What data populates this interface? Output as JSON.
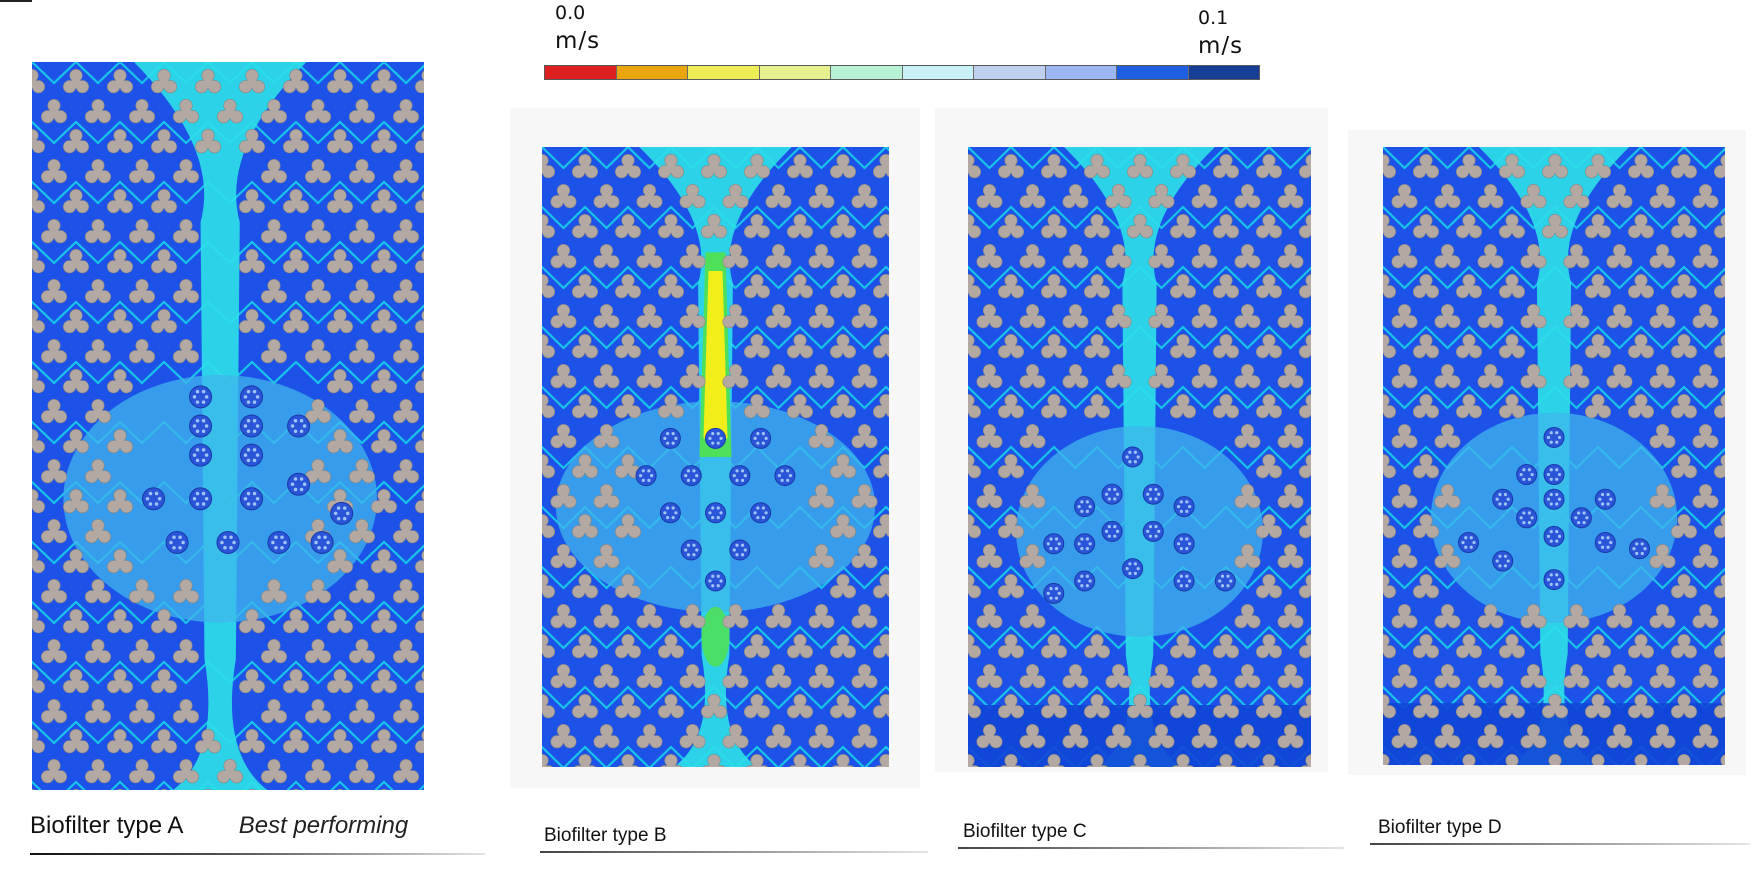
{
  "colorbar": {
    "min_value": "0.0",
    "min_unit": "m/s",
    "max_value": "0.1",
    "max_unit": "m/s",
    "colors": [
      "#dd1f1f",
      "#eaa60f",
      "#eeec55",
      "#e6f08e",
      "#b8f1d4",
      "#c9f1f8",
      "#bfcff0",
      "#9cb6f1",
      "#1e5ee0",
      "#173e96"
    ]
  },
  "panels": [
    {
      "name": "Biofilter type A",
      "note": "Best performing"
    },
    {
      "name": "Biofilter type B",
      "note": ""
    },
    {
      "name": "Biofilter type C",
      "note": ""
    },
    {
      "name": "Biofilter type D",
      "note": ""
    }
  ],
  "field_colors": {
    "background": "#1c52e8",
    "channel": "#19d8ea",
    "jet": "#2ee0e8",
    "jet_core": "#f2ee1a",
    "jet_mid": "#4fe05a",
    "media": "#b3a9a2",
    "media_outline": "#8d8580",
    "frame": "#f6f6f6"
  }
}
